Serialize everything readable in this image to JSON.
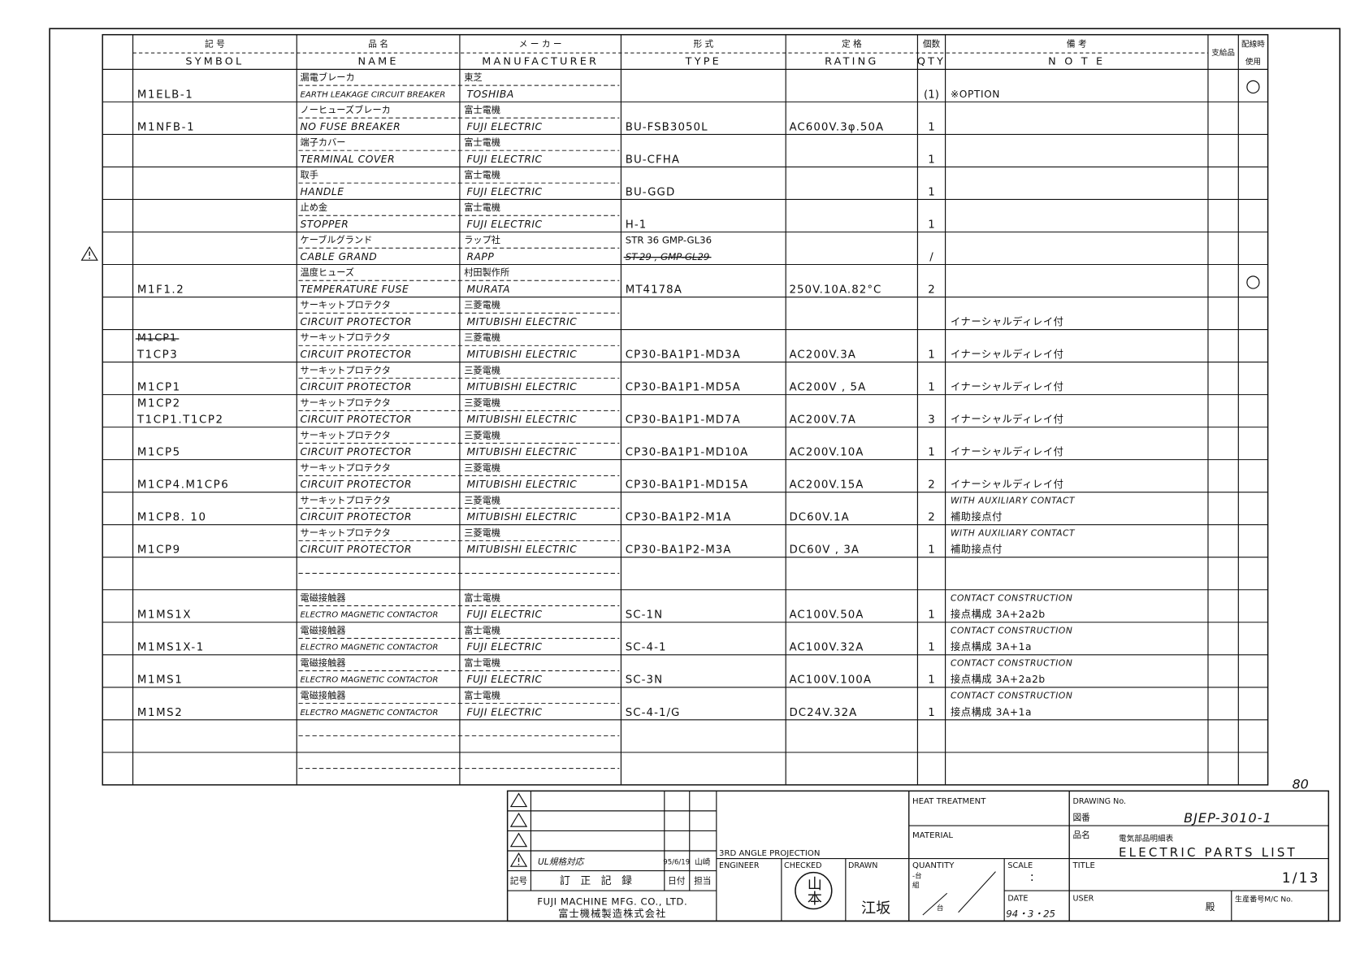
{
  "table": {
    "columns": [
      {
        "lines": [
          "記 号",
          "SYMBOL"
        ]
      },
      {
        "lines": [
          "品 名",
          "NAME"
        ]
      },
      {
        "lines": [
          "メ ー カ ー",
          "MANUFACTURER"
        ]
      },
      {
        "lines": [
          "形 式",
          "TYPE"
        ]
      },
      {
        "lines": [
          "定 格",
          "RATING"
        ]
      },
      {
        "lines": [
          "個数",
          "QTY"
        ]
      },
      {
        "lines": [
          "備 考",
          "N O T E"
        ]
      },
      {
        "lines": [
          "支給品"
        ]
      },
      {
        "lines": [
          "配線時",
          "使用"
        ]
      }
    ],
    "rows": [
      {
        "symbol": [
          "M1ELB-1"
        ],
        "name_jp": "漏電ブレーカ",
        "name_en": "EARTH LEAKAGE CIRCUIT BREAKER",
        "maker_jp": "東芝",
        "maker_en": "TOSHIBA",
        "qty": "(1)",
        "notes": [
          "※OPTION"
        ],
        "used": "○"
      },
      {
        "symbol": [
          "M1NFB-1"
        ],
        "name_jp": "ノーヒューズブレーカ",
        "name_en": "NO FUSE BREAKER",
        "maker_jp": "富士電機",
        "maker_en": "FUJI ELECTRIC",
        "type": "BU-FSB3050L",
        "rating": "AC600V.3φ.50A",
        "qty": "1"
      },
      {
        "name_jp": "端子カバー",
        "name_en": "TERMINAL COVER",
        "maker_jp": "富士電機",
        "maker_en": "FUJI ELECTRIC",
        "type": "BU-CFHA",
        "qty": "1"
      },
      {
        "name_jp": "取手",
        "name_en": "HANDLE",
        "maker_jp": "富士電機",
        "maker_en": "FUJI ELECTRIC",
        "type": "BU-GGD",
        "qty": "1"
      },
      {
        "name_jp": "止め金",
        "name_en": "STOPPER",
        "maker_jp": "富士電機",
        "maker_en": "FUJI ELECTRIC",
        "type": "H-1",
        "qty": "1"
      },
      {
        "name_jp": "ケーブルグランド",
        "name_en": "CABLE GRAND",
        "maker_jp": "ラップ社",
        "maker_en": "RAPP",
        "type": "STR 36   GMP-GL36",
        "type_struck": "ST-29 , GMP-GL29",
        "qty": "/"
      },
      {
        "symbol": [
          "M1F1.2"
        ],
        "name_jp": "温度ヒューズ",
        "name_en": "TEMPERATURE FUSE",
        "maker_jp": "村田製作所",
        "maker_en": "MURATA",
        "type": "MT4178A",
        "rating": "250V.10A.82°C",
        "qty": "2",
        "used": "○"
      },
      {
        "name_jp": "サーキットプロテクタ",
        "name_en": "CIRCUIT PROTECTOR",
        "maker_jp": "三菱電機",
        "maker_en": "MITUBISHI ELECTRIC",
        "notes": [
          "イナーシャルディレイ付"
        ]
      },
      {
        "symbol_struck": "M1CP1",
        "symbol": [
          "T1CP3"
        ],
        "name_jp": "サーキットプロテクタ",
        "name_en": "CIRCUIT PROTECTOR",
        "maker_jp": "三菱電機",
        "maker_en": "MITUBISHI ELECTRIC",
        "type": "CP30-BA1P1-MD3A",
        "rating": "AC200V.3A",
        "qty": "1",
        "notes": [
          "イナーシャルディレイ付"
        ]
      },
      {
        "symbol": [
          "M1CP1"
        ],
        "name_jp": "サーキットプロテクタ",
        "name_en": "CIRCUIT PROTECTOR",
        "maker_jp": "三菱電機",
        "maker_en": "MITUBISHI ELECTRIC",
        "type": "CP30-BA1P1-MD5A",
        "rating": "AC200V , 5A",
        "qty": "1",
        "notes": [
          "イナーシャルディレイ付"
        ]
      },
      {
        "symbol": [
          "M1CP2",
          "T1CP1.T1CP2"
        ],
        "name_jp": "サーキットプロテクタ",
        "name_en": "CIRCUIT PROTECTOR",
        "maker_jp": "三菱電機",
        "maker_en": "MITUBISHI ELECTRIC",
        "type": "CP30-BA1P1-MD7A",
        "rating": "AC200V.7A",
        "qty": "3",
        "notes": [
          "イナーシャルディレイ付"
        ]
      },
      {
        "symbol": [
          "M1CP5"
        ],
        "name_jp": "サーキットプロテクタ",
        "name_en": "CIRCUIT PROTECTOR",
        "maker_jp": "三菱電機",
        "maker_en": "MITUBISHI ELECTRIC",
        "type": "CP30-BA1P1-MD10A",
        "rating": "AC200V.10A",
        "qty": "1",
        "notes": [
          "イナーシャルディレイ付"
        ]
      },
      {
        "symbol": [
          "M1CP4.M1CP6"
        ],
        "name_jp": "サーキットプロテクタ",
        "name_en": "CIRCUIT PROTECTOR",
        "maker_jp": "三菱電機",
        "maker_en": "MITUBISHI ELECTRIC",
        "type": "CP30-BA1P1-MD15A",
        "rating": "AC200V.15A",
        "qty": "2",
        "notes": [
          "イナーシャルディレイ付"
        ]
      },
      {
        "symbol": [
          "M1CP8.  10"
        ],
        "name_jp": "サーキットプロテクタ",
        "name_en": "CIRCUIT PROTECTOR",
        "maker_jp": "三菱電機",
        "maker_en": "MITUBISHI ELECTRIC",
        "type": "CP30-BA1P2-M1A",
        "rating": "DC60V.1A",
        "qty": "2",
        "notes": [
          "WITH AUXILIARY CONTACT",
          "補助接点付"
        ]
      },
      {
        "symbol": [
          "M1CP9"
        ],
        "name_jp": "サーキットプロテクタ",
        "name_en": "CIRCUIT PROTECTOR",
        "maker_jp": "三菱電機",
        "maker_en": "MITUBISHI ELECTRIC",
        "type": "CP30-BA1P2-M3A",
        "rating": "DC60V , 3A",
        "qty": "1",
        "notes": [
          "WITH AUXILIARY CONTACT",
          "補助接点付"
        ]
      },
      {},
      {
        "symbol": [
          "M1MS1X"
        ],
        "name_jp": "電磁接触器",
        "name_en": "ELECTRO MAGNETIC CONTACTOR",
        "maker_jp": "富士電機",
        "maker_en": "FUJI ELECTRIC",
        "type": "SC-1N",
        "rating": "AC100V.50A",
        "qty": "1",
        "notes": [
          "CONTACT CONSTRUCTION",
          "接点構成  3A+2a2b"
        ]
      },
      {
        "symbol": [
          "M1MS1X-1"
        ],
        "name_jp": "電磁接触器",
        "name_en": "ELECTRO MAGNETIC CONTACTOR",
        "maker_jp": "富士電機",
        "maker_en": "FUJI ELECTRIC",
        "type": "SC-4-1",
        "rating": "AC100V.32A",
        "qty": "1",
        "notes": [
          "CONTACT CONSTRUCTION",
          "接点構成  3A+1a"
        ]
      },
      {
        "symbol": [
          "M1MS1"
        ],
        "name_jp": "電磁接触器",
        "name_en": "ELECTRO MAGNETIC CONTACTOR",
        "maker_jp": "富士電機",
        "maker_en": "FUJI ELECTRIC",
        "type": "SC-3N",
        "rating": "AC100V.100A",
        "qty": "1",
        "notes": [
          "CONTACT CONSTRUCTION",
          "接点構成  3A+2a2b"
        ]
      },
      {
        "symbol": [
          "M1MS2"
        ],
        "name_jp": "電磁接触器",
        "name_en": "ELECTRO MAGNETIC CONTACTOR",
        "maker_jp": "富士電機",
        "maker_en": "FUJI ELECTRIC",
        "type": "SC-4-1/G",
        "rating": "DC24V.32A",
        "qty": "1",
        "notes": [
          "CONTACT CONSTRUCTION",
          "接点構成  3A+1a"
        ]
      },
      {},
      {}
    ]
  },
  "annotation": "80",
  "title_block": {
    "revision_headers": [
      "記号",
      "訂 正 記 録",
      "日付",
      "担当"
    ],
    "revision": {
      "note": "UL規格対応",
      "date": "95/6/19",
      "by": "山崎"
    },
    "company_en": "FUJI MACHINE MFG. CO., LTD.",
    "company_jp": "富士機械製造株式会社",
    "projection": "3RD ANGLE PROJECTION",
    "engineer": "ENGINEER",
    "checked": "CHECKED",
    "checked_seal": "山本",
    "drawn": "DRAWN",
    "drawn_by": "江坂",
    "heat_treatment": "HEAT TREATMENT",
    "material": "MATERIAL",
    "quantity": "QUANTITY",
    "quantity_marks": [
      "-台",
      "組",
      "台"
    ],
    "scale": "SCALE",
    "scale_value": ":",
    "date": "DATE",
    "date_value": "94・3・25",
    "drawing_no": "DRAWING No.",
    "drawing_no_jp": "図番",
    "drawing_no_value": "BJEP-3010-1",
    "name_label": "品名",
    "name_jp": "電気部品明細表",
    "name_en": "ELECTRIC PARTS LIST",
    "title": "TITLE",
    "sheet": "1/13",
    "user": "USER",
    "user_suffix": "殿",
    "mc_no": "生産番号M/C No."
  }
}
